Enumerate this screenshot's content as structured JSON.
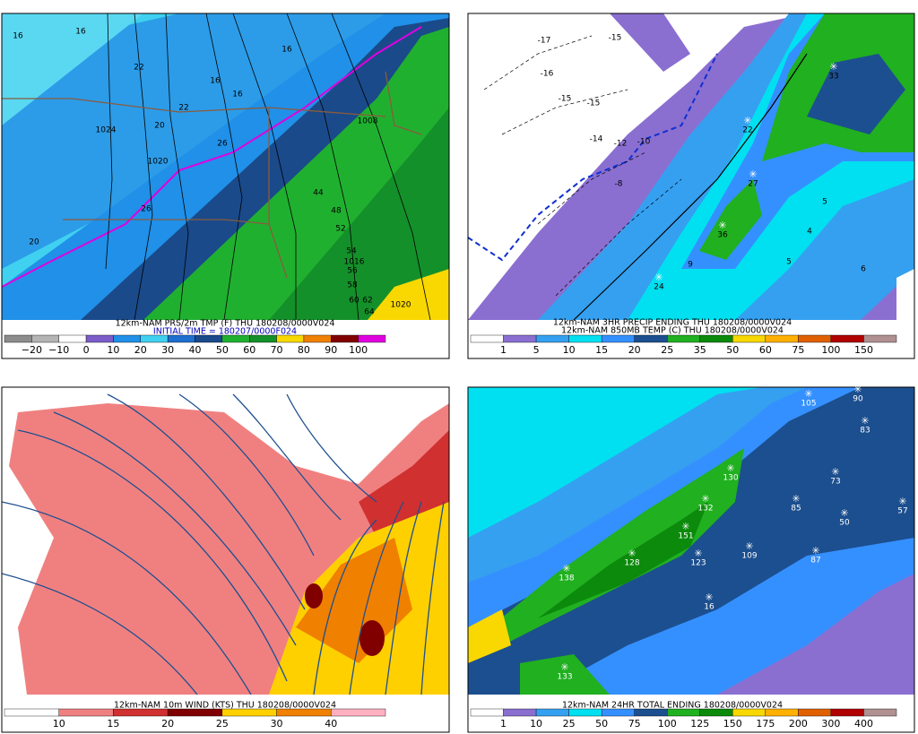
{
  "panels": [
    {
      "title": [
        "12km-NAM PRS/2m TMP (F) THU 180208/0000V024",
        "INITIAL TIME = 180207/0000F024"
      ],
      "colorbar": {
        "labels": [
          "−20",
          "−10",
          "0",
          "10",
          "20",
          "30",
          "40",
          "50",
          "60",
          "70",
          "80",
          "90",
          "100"
        ],
        "colors": [
          "#8c8c8c",
          "#b4b4b4",
          "#ffffff",
          "#7b5cc8",
          "#2090e8",
          "#40d0f0",
          "#1e6fd0",
          "#1a4a8a",
          "#20b030",
          "#14902a",
          "#f8d800",
          "#f08000",
          "#800000",
          "#e000e0"
        ]
      },
      "map_labels": [
        "16",
        "16",
        "16",
        "22",
        "22",
        "1024",
        "20",
        "1020",
        "26",
        "26",
        "16",
        "16",
        "44",
        "48",
        "52",
        "54",
        "1016",
        "56",
        "58",
        "60",
        "62",
        "64",
        "1020",
        "1008",
        "20"
      ]
    },
    {
      "title": [
        "12km-NAM 3HR PRECIP ENDING THU 180208/0000V024",
        "12km-NAM 850MB TEMP (C) THU 180208/0000V024"
      ],
      "colorbar": {
        "labels": [
          "1",
          "5",
          "10",
          "15",
          "20",
          "25",
          "35",
          "50",
          "60",
          "75",
          "100",
          "150"
        ],
        "colors": [
          "#ffffff",
          "#8a6fd1",
          "#35a0f0",
          "#00e0f0",
          "#3590ff",
          "#1c4f8f",
          "#20b020",
          "#0c8a0c",
          "#f8d800",
          "#ffb000",
          "#e06000",
          "#b00000",
          "#b09090"
        ]
      },
      "map_labels": [
        "-17",
        "-15",
        "-16",
        "-15",
        "-15",
        "-14",
        "-12",
        "-10",
        "-8",
        "22",
        "33",
        "27",
        "36",
        "24",
        "4",
        "5",
        "6",
        "5",
        "9"
      ]
    },
    {
      "title": [
        "12km-NAM 10m WIND (KTS) THU 180208/0000V024"
      ],
      "colorbar": {
        "labels": [
          "10",
          "15",
          "20",
          "25",
          "30",
          "40"
        ],
        "colors": [
          "#ffffff",
          "#f08080",
          "#d03030",
          "#800000",
          "#ffd000",
          "#f08000",
          "#ffb0c0"
        ]
      },
      "map_labels": []
    },
    {
      "title": [
        "12km-NAM 24HR TOTAL ENDING 180208/0000V024"
      ],
      "colorbar": {
        "labels": [
          "1",
          "10",
          "25",
          "50",
          "75",
          "100",
          "125",
          "150",
          "175",
          "200",
          "300",
          "400"
        ],
        "colors": [
          "#ffffff",
          "#8a6fd1",
          "#35a0f0",
          "#00e0f0",
          "#3590ff",
          "#1c4f8f",
          "#20b020",
          "#0c8a0c",
          "#f8d800",
          "#ffb000",
          "#e06000",
          "#b00000",
          "#b09090"
        ]
      },
      "map_labels": [
        "105",
        "90",
        "83",
        "130",
        "73",
        "132",
        "85",
        "50",
        "57",
        "151",
        "138",
        "128",
        "123",
        "109",
        "87",
        "16",
        "133"
      ]
    }
  ]
}
